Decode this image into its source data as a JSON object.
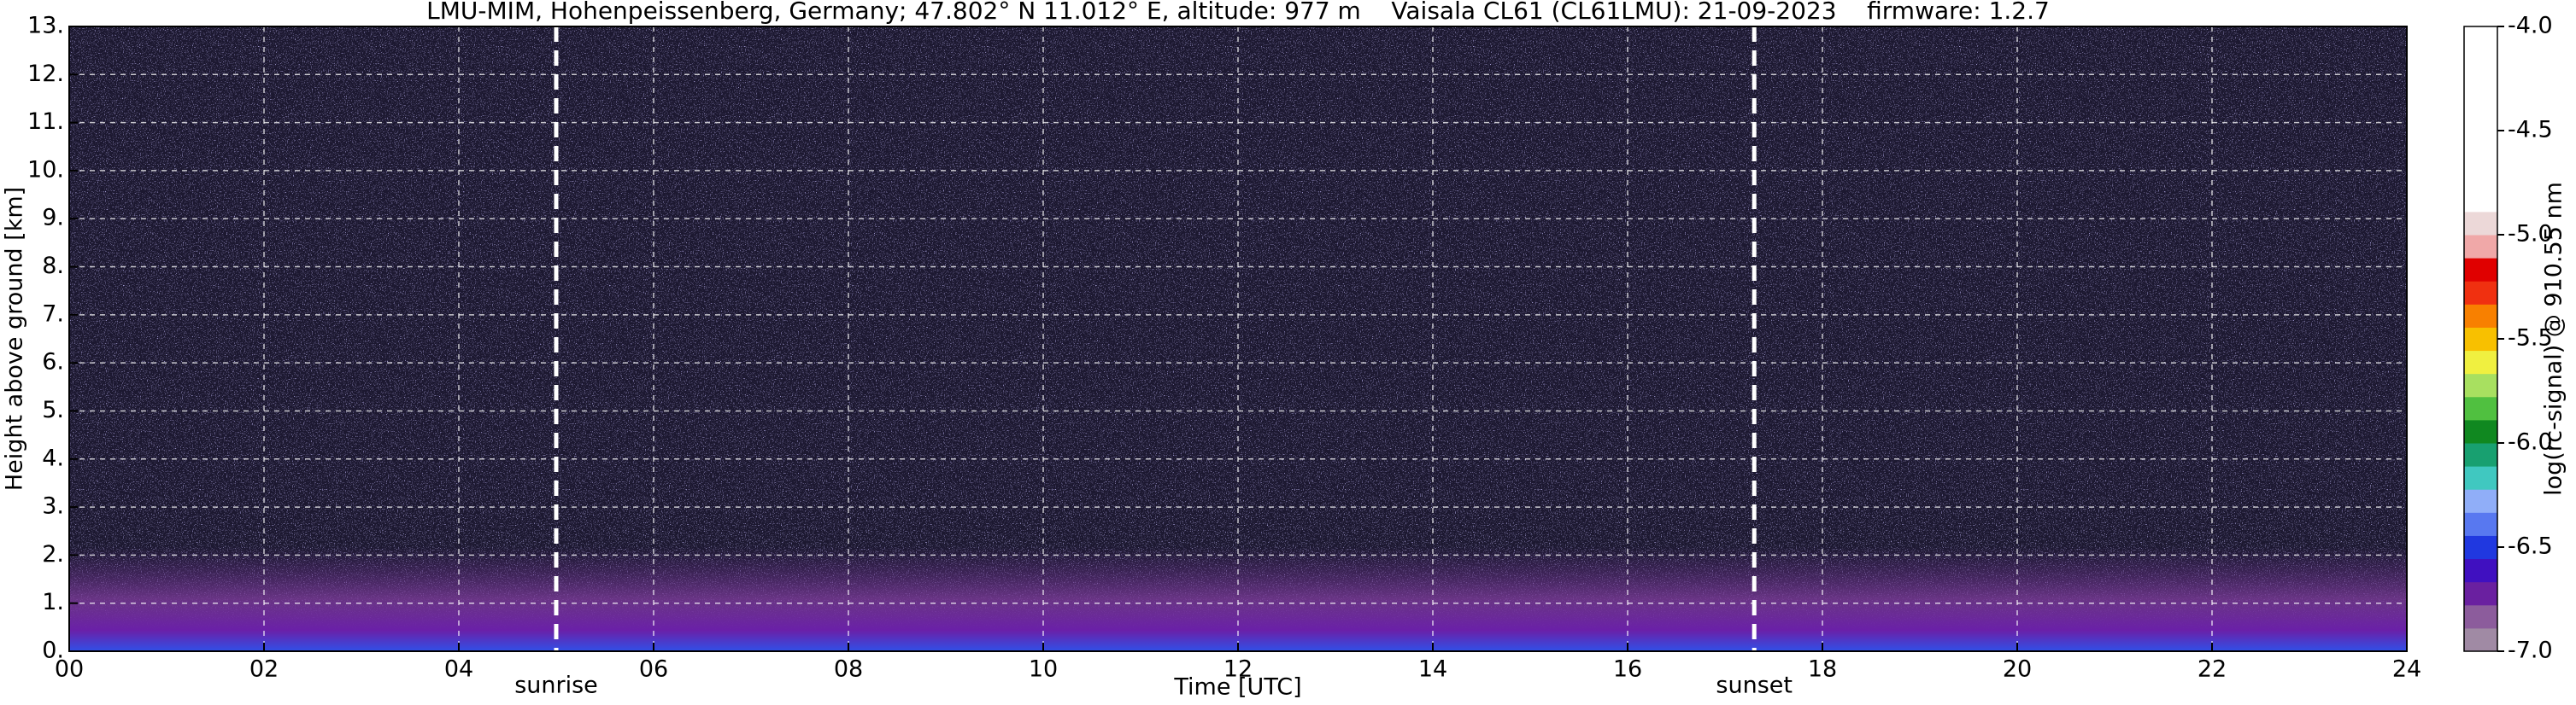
{
  "chart_data": {
    "type": "heatmap",
    "title": "LMU-MIM, Hohenpeissenberg, Germany; 47.802° N 11.012° E, altitude: 977 m    Vaisala CL61 (CL61LMU): 21-09-2023    firmware: 1.2.7",
    "x_label": "Time [UTC]",
    "y_label": "Height above ground [km]",
    "xlim": [
      0,
      24
    ],
    "xticks": [
      {
        "value": 0,
        "label": "00"
      },
      {
        "value": 2,
        "label": "02"
      },
      {
        "value": 4,
        "label": "04"
      },
      {
        "value": 6,
        "label": "06"
      },
      {
        "value": 8,
        "label": "08"
      },
      10,
      12,
      14,
      16,
      18,
      20,
      22,
      24
    ],
    "ylim": [
      0,
      13
    ],
    "yticks": [
      {
        "value": 0,
        "label": "0."
      },
      {
        "value": 1,
        "label": "1."
      },
      {
        "value": 2,
        "label": "2."
      },
      {
        "value": 3,
        "label": "3."
      },
      {
        "value": 4,
        "label": "4."
      },
      {
        "value": 5,
        "label": "5."
      },
      {
        "value": 6,
        "label": "6."
      },
      {
        "value": 7,
        "label": "7."
      },
      {
        "value": 8,
        "label": "8."
      },
      {
        "value": 9,
        "label": "9."
      },
      {
        "value": 10,
        "label": "10."
      },
      {
        "value": 11,
        "label": "11."
      },
      {
        "value": 12,
        "label": "12."
      },
      {
        "value": 13,
        "label": "13."
      }
    ],
    "grid": true,
    "markers": [
      {
        "x": 5.0,
        "label": "sunrise"
      },
      {
        "x": 17.3,
        "label": "sunset"
      }
    ],
    "colorbar": {
      "label": "log(rc-signal) @ 910.55 nm",
      "clim": [
        -7,
        -4
      ],
      "ticks": [
        {
          "value": -4,
          "label": "-4.0"
        },
        -4.5,
        {
          "value": -5,
          "label": "-5.0"
        },
        -5.5,
        {
          "value": -6,
          "label": "-6.0"
        },
        -6.5,
        {
          "value": -7,
          "label": "-7.0"
        }
      ],
      "colors": [
        "#a08aa4",
        "#8c5c9c",
        "#6a20a0",
        "#4010c0",
        "#2038e0",
        "#5878f0",
        "#90aef8",
        "#40c8c0",
        "#18a070",
        "#108820",
        "#50c040",
        "#a8e060",
        "#f0f040",
        "#f8c000",
        "#f88000",
        "#f03010",
        "#e00000",
        "#f0a8a8",
        "#ecd8d8",
        "#ffffff",
        "#ffffff",
        "#ffffff",
        "#ffffff",
        "#ffffff",
        "#ffffff",
        "#ffffff",
        "#ffffff"
      ]
    }
  }
}
